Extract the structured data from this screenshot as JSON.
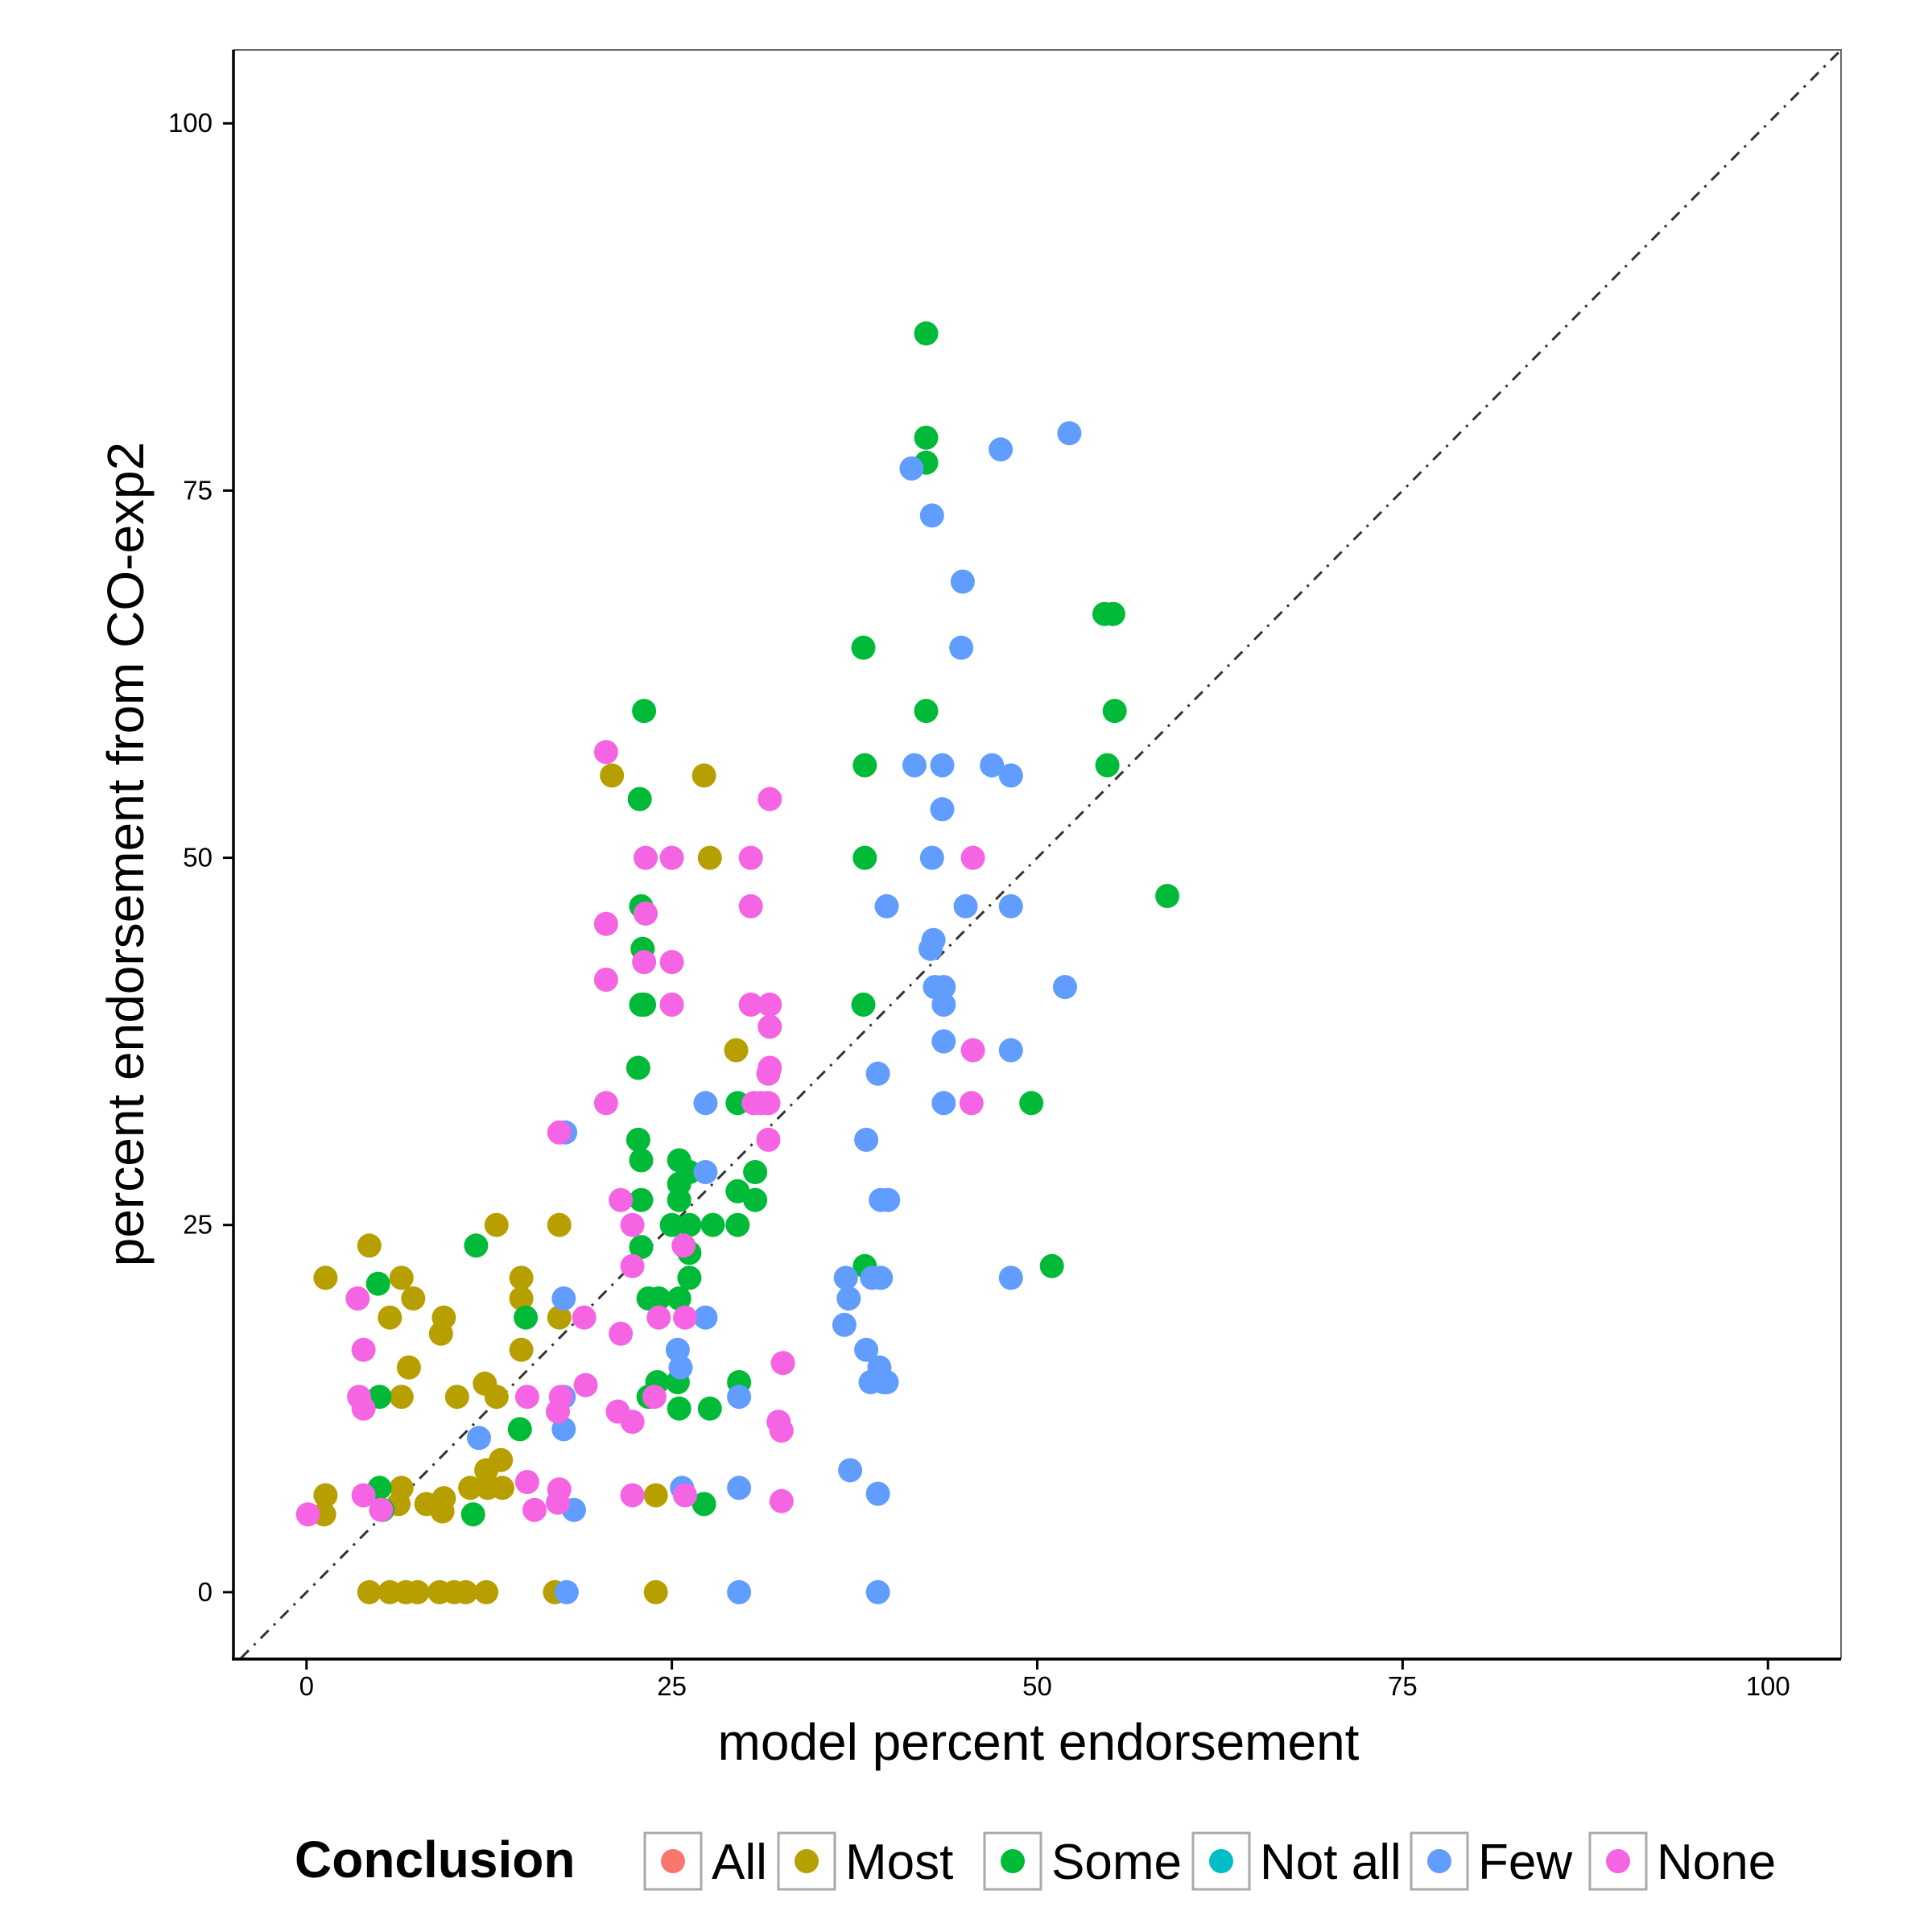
{
  "chart_data": {
    "type": "scatter",
    "title": "",
    "xlabel": "model percent endorsement",
    "ylabel": "percent endorsement from CO-exp2",
    "xlim": [
      -5,
      105
    ],
    "ylim": [
      -4.5,
      105
    ],
    "xticks": [
      0,
      25,
      50,
      75,
      100
    ],
    "yticks": [
      0,
      25,
      50,
      75,
      100
    ],
    "grid": false,
    "reference_line": {
      "type": "identity",
      "style": "dotdash"
    },
    "legend": {
      "title": "Conclusion",
      "position": "bottom"
    },
    "series": [
      {
        "name": "All",
        "color": "#F8766D",
        "points": []
      },
      {
        "name": "Most",
        "color": "#B79F00",
        "points": [
          [
            1.3,
            21.4
          ],
          [
            4.3,
            23.6
          ],
          [
            6.5,
            21.4
          ],
          [
            7.3,
            20
          ],
          [
            9.4,
            18.7
          ],
          [
            9.2,
            17.6
          ],
          [
            5.7,
            18.7
          ],
          [
            7,
            15.3
          ],
          [
            13,
            25
          ],
          [
            14.7,
            21.4
          ],
          [
            14.7,
            20
          ],
          [
            14.7,
            16.5
          ],
          [
            17.3,
            25
          ],
          [
            17.3,
            18.7
          ],
          [
            20.9,
            55.6
          ],
          [
            27.2,
            55.6
          ],
          [
            27.6,
            50
          ],
          [
            29.4,
            36.9
          ],
          [
            6.5,
            13.3
          ],
          [
            10.3,
            13.3
          ],
          [
            12.2,
            14.2
          ],
          [
            13,
            13.3
          ],
          [
            12.3,
            8.3
          ],
          [
            13.3,
            9
          ],
          [
            11.2,
            7.1
          ],
          [
            12.4,
            7.1
          ],
          [
            13.4,
            7.1
          ],
          [
            6.5,
            7.1
          ],
          [
            6.3,
            6
          ],
          [
            8.2,
            6
          ],
          [
            9.4,
            6.4
          ],
          [
            9.3,
            5.5
          ],
          [
            1.3,
            6.6
          ],
          [
            1.2,
            5.3
          ],
          [
            4.3,
            0
          ],
          [
            5.7,
            0
          ],
          [
            6.8,
            0
          ],
          [
            7.6,
            0
          ],
          [
            9.1,
            0
          ],
          [
            10.1,
            0
          ],
          [
            10.9,
            0
          ],
          [
            12.3,
            0
          ],
          [
            17,
            0
          ],
          [
            23.9,
            6.6
          ],
          [
            23.9,
            0
          ]
        ]
      },
      {
        "name": "Some",
        "color": "#00BA38",
        "points": [
          [
            42.4,
            85.7
          ],
          [
            42.4,
            78.6
          ],
          [
            42.4,
            76.9
          ],
          [
            38.1,
            64.3
          ],
          [
            42.4,
            60
          ],
          [
            38.2,
            56.3
          ],
          [
            38.2,
            50
          ],
          [
            38.1,
            40
          ],
          [
            38.2,
            22.2
          ],
          [
            55.2,
            66.6
          ],
          [
            54.6,
            66.6
          ],
          [
            55.3,
            60
          ],
          [
            54.8,
            56.3
          ],
          [
            58.9,
            47.4
          ],
          [
            49.6,
            33.3
          ],
          [
            51,
            22.2
          ],
          [
            23.1,
            60
          ],
          [
            22.8,
            54
          ],
          [
            22.9,
            46.7
          ],
          [
            23,
            43.8
          ],
          [
            22.9,
            40
          ],
          [
            23.1,
            40
          ],
          [
            22.7,
            35.7
          ],
          [
            22.7,
            30.8
          ],
          [
            22.9,
            29.4
          ],
          [
            22.9,
            26.7
          ],
          [
            22.9,
            23.5
          ],
          [
            25.5,
            29.4
          ],
          [
            25.5,
            27.8
          ],
          [
            25.5,
            26.7
          ],
          [
            25,
            25
          ],
          [
            26.2,
            28.6
          ],
          [
            26.2,
            25
          ],
          [
            26.2,
            23.1
          ],
          [
            26.2,
            21.4
          ],
          [
            25.5,
            20
          ],
          [
            23.4,
            20
          ],
          [
            24.1,
            20
          ],
          [
            29.5,
            33.3
          ],
          [
            29.5,
            27.3
          ],
          [
            29.5,
            25
          ],
          [
            27.8,
            25
          ],
          [
            30.7,
            28.6
          ],
          [
            30.7,
            26.7
          ],
          [
            25.4,
            14.3
          ],
          [
            25.5,
            12.5
          ],
          [
            27.6,
            12.5
          ],
          [
            29.6,
            14.3
          ],
          [
            24,
            14.3
          ],
          [
            23.4,
            13.3
          ],
          [
            27.2,
            6
          ],
          [
            11.6,
            23.6
          ],
          [
            4.9,
            21
          ],
          [
            15,
            18.7
          ],
          [
            14.6,
            11.1
          ],
          [
            5,
            13.3
          ],
          [
            5,
            7.1
          ],
          [
            5.2,
            5.6
          ],
          [
            11.4,
            5.3
          ]
        ]
      },
      {
        "name": "Not all",
        "color": "#00BFC4",
        "points": []
      },
      {
        "name": "Few",
        "color": "#619CFF",
        "points": [
          [
            41.4,
            76.5
          ],
          [
            47.5,
            77.8
          ],
          [
            52.2,
            78.9
          ],
          [
            42.8,
            73.3
          ],
          [
            44.9,
            68.8
          ],
          [
            44.8,
            64.3
          ],
          [
            41.6,
            56.3
          ],
          [
            43.5,
            56.3
          ],
          [
            46.9,
            56.3
          ],
          [
            48.2,
            55.6
          ],
          [
            43.5,
            53.3
          ],
          [
            42.8,
            50
          ],
          [
            39.7,
            46.7
          ],
          [
            45.1,
            46.7
          ],
          [
            48.2,
            46.7
          ],
          [
            42.9,
            44.4
          ],
          [
            42.7,
            43.8
          ],
          [
            43,
            41.2
          ],
          [
            43.6,
            41.2
          ],
          [
            51.9,
            41.2
          ],
          [
            43.6,
            40
          ],
          [
            43.6,
            37.5
          ],
          [
            48.2,
            36.9
          ],
          [
            39.1,
            35.3
          ],
          [
            43.6,
            33.3
          ],
          [
            38.3,
            30.8
          ],
          [
            39.3,
            26.7
          ],
          [
            39.8,
            26.7
          ],
          [
            27.3,
            33.3
          ],
          [
            27.3,
            28.6
          ],
          [
            27.3,
            18.7
          ],
          [
            36.9,
            21.4
          ],
          [
            37.1,
            20
          ],
          [
            38.7,
            21.4
          ],
          [
            39.3,
            21.4
          ],
          [
            48.2,
            21.4
          ],
          [
            36.8,
            18.2
          ],
          [
            38.3,
            16.5
          ],
          [
            39.2,
            15.3
          ],
          [
            38.6,
            14.3
          ],
          [
            39.5,
            14.3
          ],
          [
            39.7,
            14.3
          ],
          [
            37.2,
            8.3
          ],
          [
            39.1,
            6.7
          ],
          [
            29.6,
            7.1
          ],
          [
            29.6,
            13.3
          ],
          [
            25.7,
            7.1
          ],
          [
            25.4,
            16.5
          ],
          [
            25.6,
            15.3
          ],
          [
            17.7,
            31.3
          ],
          [
            17.6,
            20
          ],
          [
            17.6,
            13.3
          ],
          [
            17.6,
            11.1
          ],
          [
            18.3,
            5.6
          ],
          [
            11.8,
            10.5
          ],
          [
            17.8,
            0
          ],
          [
            29.6,
            0
          ],
          [
            39.1,
            0
          ]
        ]
      },
      {
        "name": "None",
        "color": "#F564E3",
        "points": [
          [
            20.5,
            57.2
          ],
          [
            23.2,
            50
          ],
          [
            25,
            50
          ],
          [
            30.4,
            50
          ],
          [
            31.7,
            54
          ],
          [
            30.4,
            46.7
          ],
          [
            23.2,
            46.2
          ],
          [
            20.5,
            45.5
          ],
          [
            23.1,
            42.9
          ],
          [
            25,
            42.9
          ],
          [
            20.5,
            41.7
          ],
          [
            25,
            40
          ],
          [
            30.4,
            40
          ],
          [
            31.7,
            40
          ],
          [
            31.7,
            38.5
          ],
          [
            31.7,
            35.7
          ],
          [
            31.6,
            35.3
          ],
          [
            30.6,
            33.3
          ],
          [
            31.1,
            33.3
          ],
          [
            31.6,
            33.3
          ],
          [
            31.6,
            30.8
          ],
          [
            20.5,
            33.3
          ],
          [
            17.3,
            31.3
          ],
          [
            45.6,
            50
          ],
          [
            45.6,
            36.9
          ],
          [
            45.5,
            33.3
          ],
          [
            21.5,
            26.7
          ],
          [
            22.3,
            25
          ],
          [
            25.8,
            23.6
          ],
          [
            22.3,
            22.2
          ],
          [
            24.1,
            18.7
          ],
          [
            25.9,
            18.7
          ],
          [
            19,
            18.7
          ],
          [
            21.5,
            17.6
          ],
          [
            32.6,
            15.6
          ],
          [
            23.8,
            13.3
          ],
          [
            32.3,
            11.6
          ],
          [
            32.5,
            11
          ],
          [
            22.3,
            11.6
          ],
          [
            21.3,
            12.3
          ],
          [
            19.1,
            14.1
          ],
          [
            17.4,
            13.3
          ],
          [
            17.2,
            12.3
          ],
          [
            15.1,
            13.3
          ],
          [
            3.5,
            20
          ],
          [
            3.9,
            16.5
          ],
          [
            3.6,
            13.3
          ],
          [
            3.9,
            12.5
          ],
          [
            15.1,
            7.5
          ],
          [
            17.3,
            7
          ],
          [
            17.2,
            6.1
          ],
          [
            15.6,
            5.6
          ],
          [
            22.3,
            6.6
          ],
          [
            25.9,
            6.6
          ],
          [
            32.5,
            6.2
          ],
          [
            3.9,
            6.6
          ],
          [
            5.1,
            5.6
          ],
          [
            0.1,
            5.3
          ]
        ]
      }
    ]
  }
}
